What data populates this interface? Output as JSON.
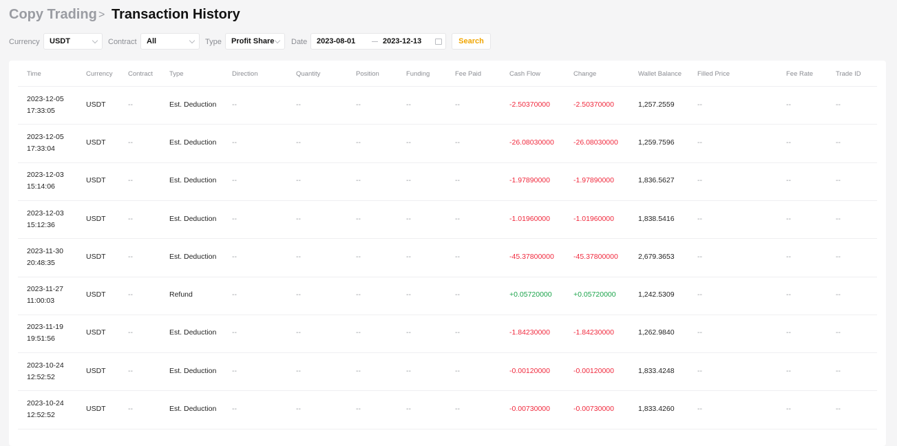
{
  "header": {
    "breadcrumb": "Copy Trading",
    "separator": ">",
    "title": "Transaction History"
  },
  "filters": [
    {
      "label": "Currency",
      "value": "USDT"
    },
    {
      "label": "Contract",
      "value": "All"
    },
    {
      "label": "Type",
      "value": "Profit Share"
    }
  ],
  "date_filter": {
    "label": "Date",
    "start": "2023-08-01",
    "end": "2023-12-13"
  },
  "search_button": "Search",
  "table": {
    "columns": [
      "Time",
      "Currency",
      "Contract",
      "Type",
      "Direction",
      "Quantity",
      "Position",
      "Funding",
      "Fee Paid",
      "Cash Flow",
      "Change",
      "Wallet Balance",
      "Filled Price",
      "Fee Rate",
      "Trade ID"
    ],
    "negative_color": "#f0283c",
    "positive_color": "#1aa34a",
    "rows": [
      {
        "date": "2023-12-05",
        "time": "17:33:05",
        "sign": "negative",
        "cells": [
          "USDT",
          "--",
          "Est. Deduction",
          "--",
          "--",
          "--",
          "--",
          "--",
          "-2.50370000",
          "-2.50370000",
          "1,257.2559",
          "--",
          "--",
          "--"
        ]
      },
      {
        "date": "2023-12-05",
        "time": "17:33:04",
        "sign": "negative",
        "cells": [
          "USDT",
          "--",
          "Est. Deduction",
          "--",
          "--",
          "--",
          "--",
          "--",
          "-26.08030000",
          "-26.08030000",
          "1,259.7596",
          "--",
          "--",
          "--"
        ]
      },
      {
        "date": "2023-12-03",
        "time": "15:14:06",
        "sign": "negative",
        "cells": [
          "USDT",
          "--",
          "Est. Deduction",
          "--",
          "--",
          "--",
          "--",
          "--",
          "-1.97890000",
          "-1.97890000",
          "1,836.5627",
          "--",
          "--",
          "--"
        ]
      },
      {
        "date": "2023-12-03",
        "time": "15:12:36",
        "sign": "negative",
        "cells": [
          "USDT",
          "--",
          "Est. Deduction",
          "--",
          "--",
          "--",
          "--",
          "--",
          "-1.01960000",
          "-1.01960000",
          "1,838.5416",
          "--",
          "--",
          "--"
        ]
      },
      {
        "date": "2023-11-30",
        "time": "20:48:35",
        "sign": "negative",
        "cells": [
          "USDT",
          "--",
          "Est. Deduction",
          "--",
          "--",
          "--",
          "--",
          "--",
          "-45.37800000",
          "-45.37800000",
          "2,679.3653",
          "--",
          "--",
          "--"
        ]
      },
      {
        "date": "2023-11-27",
        "time": "11:00:03",
        "sign": "positive",
        "cells": [
          "USDT",
          "--",
          "Refund",
          "--",
          "--",
          "--",
          "--",
          "--",
          "+0.05720000",
          "+0.05720000",
          "1,242.5309",
          "--",
          "--",
          "--"
        ]
      },
      {
        "date": "2023-11-19",
        "time": "19:51:56",
        "sign": "negative",
        "cells": [
          "USDT",
          "--",
          "Est. Deduction",
          "--",
          "--",
          "--",
          "--",
          "--",
          "-1.84230000",
          "-1.84230000",
          "1,262.9840",
          "--",
          "--",
          "--"
        ]
      },
      {
        "date": "2023-10-24",
        "time": "12:52:52",
        "sign": "negative",
        "cells": [
          "USDT",
          "--",
          "Est. Deduction",
          "--",
          "--",
          "--",
          "--",
          "--",
          "-0.00120000",
          "-0.00120000",
          "1,833.4248",
          "--",
          "--",
          "--"
        ]
      },
      {
        "date": "2023-10-24",
        "time": "12:52:52",
        "sign": "negative",
        "cells": [
          "USDT",
          "--",
          "Est. Deduction",
          "--",
          "--",
          "--",
          "--",
          "--",
          "-0.00730000",
          "-0.00730000",
          "1,833.4260",
          "--",
          "--",
          "--"
        ]
      }
    ]
  }
}
